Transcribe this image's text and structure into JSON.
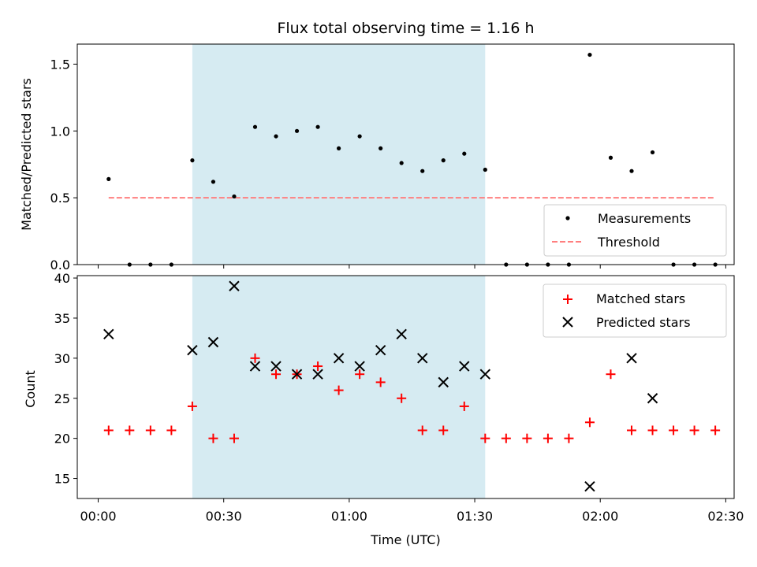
{
  "chart_data": [
    {
      "type": "scatter",
      "title": "Flux total observing time = 1.16 h",
      "xlabel": "",
      "ylabel": "Matched/Predicted stars",
      "xlim": [
        "-00:05",
        "02:32"
      ],
      "ylim": [
        0,
        1.65
      ],
      "yticks": [
        0.0,
        0.5,
        1.0,
        1.5
      ],
      "ytick_labels": [
        "0.0",
        "0.5",
        "1.0",
        "1.5"
      ],
      "shaded_region": {
        "x": [
          "00:22:30",
          "01:32:30"
        ],
        "color": "#add8e6"
      },
      "legend": {
        "position": "lower-right",
        "entries": [
          "Measurements",
          "Threshold"
        ]
      },
      "series": [
        {
          "name": "Measurements",
          "marker": "dot",
          "color": "#000000",
          "x": [
            "00:02:30",
            "00:07:30",
            "00:12:30",
            "00:17:30",
            "00:22:30",
            "00:27:30",
            "00:32:30",
            "00:37:30",
            "00:42:30",
            "00:47:30",
            "00:52:30",
            "00:57:30",
            "01:02:30",
            "01:07:30",
            "01:12:30",
            "01:17:30",
            "01:22:30",
            "01:27:30",
            "01:32:30",
            "01:37:30",
            "01:42:30",
            "01:47:30",
            "01:52:30",
            "01:57:30",
            "02:02:30",
            "02:07:30",
            "02:12:30",
            "02:17:30",
            "02:22:30",
            "02:27:30"
          ],
          "y": [
            0.64,
            0.0,
            0.0,
            0.0,
            0.78,
            0.62,
            0.51,
            1.03,
            0.96,
            1.0,
            1.03,
            0.87,
            0.96,
            0.87,
            0.76,
            0.7,
            0.78,
            0.83,
            0.71,
            0.0,
            0.0,
            0.0,
            0.0,
            1.57,
            0.8,
            0.7,
            0.84,
            0.0,
            0.0,
            0.0
          ]
        },
        {
          "name": "Threshold",
          "marker": "dashed-line",
          "color": "#ff7f7f",
          "x": [
            "00:02:30",
            "02:27:30"
          ],
          "y": [
            0.5,
            0.5
          ]
        }
      ]
    },
    {
      "type": "scatter",
      "title": "",
      "xlabel": "Time (UTC)",
      "ylabel": "Count",
      "xlim": [
        "-00:05",
        "02:32"
      ],
      "ylim": [
        12.5,
        40.3
      ],
      "yticks": [
        15,
        20,
        25,
        30,
        35,
        40
      ],
      "ytick_labels": [
        "15",
        "20",
        "25",
        "30",
        "35",
        "40"
      ],
      "xticks": [
        "00:00",
        "00:30",
        "01:00",
        "01:30",
        "02:00",
        "02:30"
      ],
      "xtick_labels": [
        "00:00",
        "00:30",
        "01:00",
        "01:30",
        "02:00",
        "02:30"
      ],
      "shaded_region": {
        "x": [
          "00:22:30",
          "01:32:30"
        ],
        "color": "#add8e6"
      },
      "legend": {
        "position": "upper-right",
        "entries": [
          "Matched stars",
          "Predicted stars"
        ]
      },
      "series": [
        {
          "name": "Matched stars",
          "marker": "plus",
          "color": "#ff0000",
          "x": [
            "00:02:30",
            "00:07:30",
            "00:12:30",
            "00:17:30",
            "00:22:30",
            "00:27:30",
            "00:32:30",
            "00:37:30",
            "00:42:30",
            "00:47:30",
            "00:52:30",
            "00:57:30",
            "01:02:30",
            "01:07:30",
            "01:12:30",
            "01:17:30",
            "01:22:30",
            "01:27:30",
            "01:32:30",
            "01:37:30",
            "01:42:30",
            "01:47:30",
            "01:52:30",
            "01:57:30",
            "02:02:30",
            "02:07:30",
            "02:12:30",
            "02:17:30",
            "02:22:30",
            "02:27:30"
          ],
          "y": [
            21,
            21,
            21,
            21,
            24,
            20,
            20,
            30,
            28,
            28,
            29,
            26,
            28,
            27,
            25,
            21,
            21,
            24,
            20,
            20,
            20,
            20,
            20,
            22,
            28,
            21,
            21,
            21,
            21,
            21
          ]
        },
        {
          "name": "Predicted stars",
          "marker": "x",
          "color": "#000000",
          "x": [
            "00:02:30",
            "00:22:30",
            "00:27:30",
            "00:32:30",
            "00:37:30",
            "00:42:30",
            "00:47:30",
            "00:52:30",
            "00:57:30",
            "01:02:30",
            "01:07:30",
            "01:12:30",
            "01:17:30",
            "01:22:30",
            "01:27:30",
            "01:32:30",
            "01:57:30",
            "02:07:30",
            "02:12:30"
          ],
          "y": [
            33,
            31,
            32,
            39,
            29,
            29,
            28,
            28,
            30,
            29,
            31,
            33,
            30,
            27,
            29,
            28,
            14,
            30,
            25
          ]
        }
      ]
    }
  ]
}
